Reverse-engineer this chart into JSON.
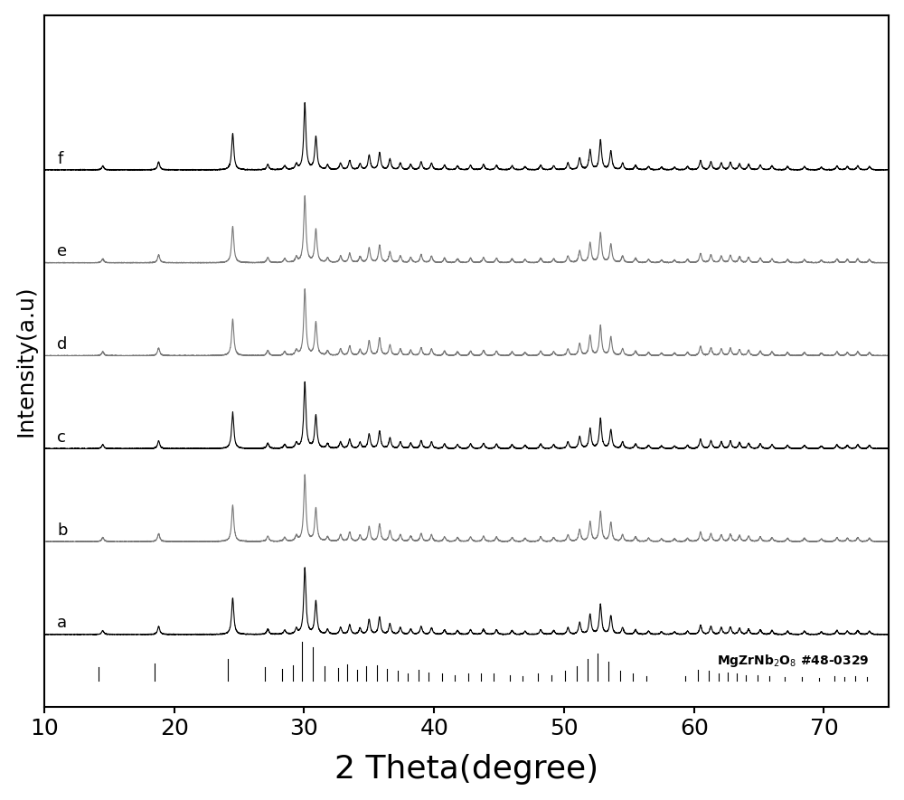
{
  "title": "",
  "xlabel": "2 Theta(degree)",
  "ylabel": "Intensity(a.u)",
  "xlim": [
    10,
    75
  ],
  "xlabel_fontsize": 26,
  "ylabel_fontsize": 18,
  "xtick_fontsize": 18,
  "background_color": "#ffffff",
  "trace_labels": [
    "a",
    "b",
    "c",
    "d",
    "e",
    "f"
  ],
  "trace_colors": [
    "#000000",
    "#777777",
    "#000000",
    "#777777",
    "#777777",
    "#000000"
  ],
  "trace_offsets": [
    0.0,
    0.09,
    0.18,
    0.27,
    0.36,
    0.45
  ],
  "xrd_peaks": [
    {
      "two_theta": 14.5,
      "intensity": 0.06
    },
    {
      "two_theta": 18.8,
      "intensity": 0.12
    },
    {
      "two_theta": 24.5,
      "intensity": 0.55
    },
    {
      "two_theta": 27.2,
      "intensity": 0.08
    },
    {
      "two_theta": 28.5,
      "intensity": 0.06
    },
    {
      "two_theta": 29.4,
      "intensity": 0.08
    },
    {
      "two_theta": 30.05,
      "intensity": 1.0
    },
    {
      "two_theta": 30.9,
      "intensity": 0.5
    },
    {
      "two_theta": 31.8,
      "intensity": 0.07
    },
    {
      "two_theta": 32.8,
      "intensity": 0.1
    },
    {
      "two_theta": 33.5,
      "intensity": 0.14
    },
    {
      "two_theta": 34.3,
      "intensity": 0.09
    },
    {
      "two_theta": 35.0,
      "intensity": 0.22
    },
    {
      "two_theta": 35.8,
      "intensity": 0.26
    },
    {
      "two_theta": 36.6,
      "intensity": 0.16
    },
    {
      "two_theta": 37.4,
      "intensity": 0.1
    },
    {
      "two_theta": 38.2,
      "intensity": 0.08
    },
    {
      "two_theta": 39.0,
      "intensity": 0.12
    },
    {
      "two_theta": 39.8,
      "intensity": 0.1
    },
    {
      "two_theta": 40.8,
      "intensity": 0.07
    },
    {
      "two_theta": 41.8,
      "intensity": 0.06
    },
    {
      "two_theta": 42.8,
      "intensity": 0.07
    },
    {
      "two_theta": 43.8,
      "intensity": 0.08
    },
    {
      "two_theta": 44.8,
      "intensity": 0.07
    },
    {
      "two_theta": 46.0,
      "intensity": 0.06
    },
    {
      "two_theta": 47.0,
      "intensity": 0.05
    },
    {
      "two_theta": 48.2,
      "intensity": 0.07
    },
    {
      "two_theta": 49.2,
      "intensity": 0.06
    },
    {
      "two_theta": 50.3,
      "intensity": 0.1
    },
    {
      "two_theta": 51.2,
      "intensity": 0.18
    },
    {
      "two_theta": 52.0,
      "intensity": 0.3
    },
    {
      "two_theta": 52.8,
      "intensity": 0.45
    },
    {
      "two_theta": 53.6,
      "intensity": 0.28
    },
    {
      "two_theta": 54.5,
      "intensity": 0.1
    },
    {
      "two_theta": 55.5,
      "intensity": 0.07
    },
    {
      "two_theta": 56.5,
      "intensity": 0.05
    },
    {
      "two_theta": 57.5,
      "intensity": 0.04
    },
    {
      "two_theta": 58.5,
      "intensity": 0.04
    },
    {
      "two_theta": 59.5,
      "intensity": 0.05
    },
    {
      "two_theta": 60.5,
      "intensity": 0.14
    },
    {
      "two_theta": 61.3,
      "intensity": 0.12
    },
    {
      "two_theta": 62.1,
      "intensity": 0.1
    },
    {
      "two_theta": 62.8,
      "intensity": 0.11
    },
    {
      "two_theta": 63.5,
      "intensity": 0.09
    },
    {
      "two_theta": 64.2,
      "intensity": 0.08
    },
    {
      "two_theta": 65.1,
      "intensity": 0.07
    },
    {
      "two_theta": 66.0,
      "intensity": 0.06
    },
    {
      "two_theta": 67.2,
      "intensity": 0.05
    },
    {
      "two_theta": 68.5,
      "intensity": 0.05
    },
    {
      "two_theta": 69.8,
      "intensity": 0.04
    },
    {
      "two_theta": 71.0,
      "intensity": 0.06
    },
    {
      "two_theta": 71.8,
      "intensity": 0.05
    },
    {
      "two_theta": 72.6,
      "intensity": 0.06
    },
    {
      "two_theta": 73.5,
      "intensity": 0.05
    }
  ],
  "ref_peaks": [
    {
      "two_theta": 14.2,
      "intensity": 0.35
    },
    {
      "two_theta": 18.5,
      "intensity": 0.45
    },
    {
      "two_theta": 24.1,
      "intensity": 0.55
    },
    {
      "two_theta": 27.0,
      "intensity": 0.35
    },
    {
      "two_theta": 28.3,
      "intensity": 0.3
    },
    {
      "two_theta": 29.1,
      "intensity": 0.4
    },
    {
      "two_theta": 29.85,
      "intensity": 1.0
    },
    {
      "two_theta": 30.65,
      "intensity": 0.85
    },
    {
      "two_theta": 31.6,
      "intensity": 0.38
    },
    {
      "two_theta": 32.6,
      "intensity": 0.32
    },
    {
      "two_theta": 33.3,
      "intensity": 0.42
    },
    {
      "two_theta": 34.1,
      "intensity": 0.28
    },
    {
      "two_theta": 34.8,
      "intensity": 0.38
    },
    {
      "two_theta": 35.6,
      "intensity": 0.4
    },
    {
      "two_theta": 36.4,
      "intensity": 0.3
    },
    {
      "two_theta": 37.2,
      "intensity": 0.25
    },
    {
      "two_theta": 38.0,
      "intensity": 0.2
    },
    {
      "two_theta": 38.8,
      "intensity": 0.28
    },
    {
      "two_theta": 39.6,
      "intensity": 0.22
    },
    {
      "two_theta": 40.6,
      "intensity": 0.18
    },
    {
      "two_theta": 41.6,
      "intensity": 0.15
    },
    {
      "two_theta": 42.6,
      "intensity": 0.18
    },
    {
      "two_theta": 43.6,
      "intensity": 0.2
    },
    {
      "two_theta": 44.6,
      "intensity": 0.18
    },
    {
      "two_theta": 45.8,
      "intensity": 0.15
    },
    {
      "two_theta": 46.8,
      "intensity": 0.12
    },
    {
      "two_theta": 48.0,
      "intensity": 0.18
    },
    {
      "two_theta": 49.0,
      "intensity": 0.15
    },
    {
      "two_theta": 50.1,
      "intensity": 0.25
    },
    {
      "two_theta": 51.0,
      "intensity": 0.38
    },
    {
      "two_theta": 51.8,
      "intensity": 0.55
    },
    {
      "two_theta": 52.6,
      "intensity": 0.7
    },
    {
      "two_theta": 53.4,
      "intensity": 0.5
    },
    {
      "two_theta": 54.3,
      "intensity": 0.25
    },
    {
      "two_theta": 55.3,
      "intensity": 0.18
    },
    {
      "two_theta": 56.3,
      "intensity": 0.12
    },
    {
      "two_theta": 59.3,
      "intensity": 0.12
    },
    {
      "two_theta": 60.3,
      "intensity": 0.28
    },
    {
      "two_theta": 61.1,
      "intensity": 0.25
    },
    {
      "two_theta": 61.9,
      "intensity": 0.2
    },
    {
      "two_theta": 62.6,
      "intensity": 0.22
    },
    {
      "two_theta": 63.3,
      "intensity": 0.18
    },
    {
      "two_theta": 64.0,
      "intensity": 0.15
    },
    {
      "two_theta": 64.9,
      "intensity": 0.14
    },
    {
      "two_theta": 65.8,
      "intensity": 0.12
    },
    {
      "two_theta": 67.0,
      "intensity": 0.1
    },
    {
      "two_theta": 68.3,
      "intensity": 0.1
    },
    {
      "two_theta": 69.6,
      "intensity": 0.08
    },
    {
      "two_theta": 70.8,
      "intensity": 0.12
    },
    {
      "two_theta": 71.6,
      "intensity": 0.1
    },
    {
      "two_theta": 72.4,
      "intensity": 0.12
    },
    {
      "two_theta": 73.3,
      "intensity": 0.1
    }
  ]
}
